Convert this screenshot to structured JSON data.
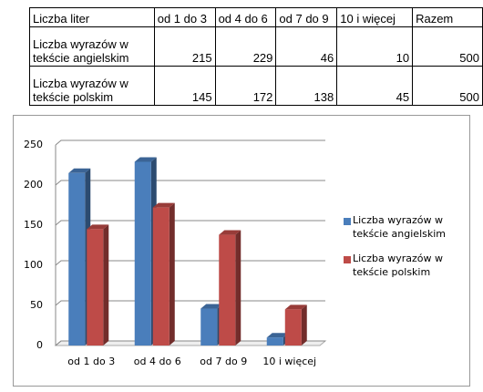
{
  "table": {
    "header": [
      "Liczba liter",
      "od 1 do 3",
      "od 4 do 6",
      "od 7 do 9",
      "10 i więcej",
      "Razem"
    ],
    "rows": [
      [
        "Liczba wyrazów w tekście angielskim",
        215,
        229,
        46,
        10,
        500
      ],
      [
        "Liczba wyrazów w tekście polskim",
        145,
        172,
        138,
        45,
        500
      ]
    ]
  },
  "chart_data": {
    "type": "bar",
    "categories": [
      "od 1 do 3",
      "od 4 do 6",
      "od 7 do 9",
      "10 i więcej"
    ],
    "series": [
      {
        "name": "Liczba wyrazów w tekście angielskim",
        "color": "#4a7ebb",
        "values": [
          215,
          229,
          46,
          10
        ]
      },
      {
        "name": "Liczba wyrazów w tekście polskim",
        "color": "#be4b48",
        "values": [
          145,
          172,
          138,
          45
        ]
      }
    ],
    "ylim": [
      0,
      250
    ],
    "yticks": [
      0,
      50,
      100,
      150,
      200,
      250
    ],
    "grid": true,
    "legend": "right"
  }
}
